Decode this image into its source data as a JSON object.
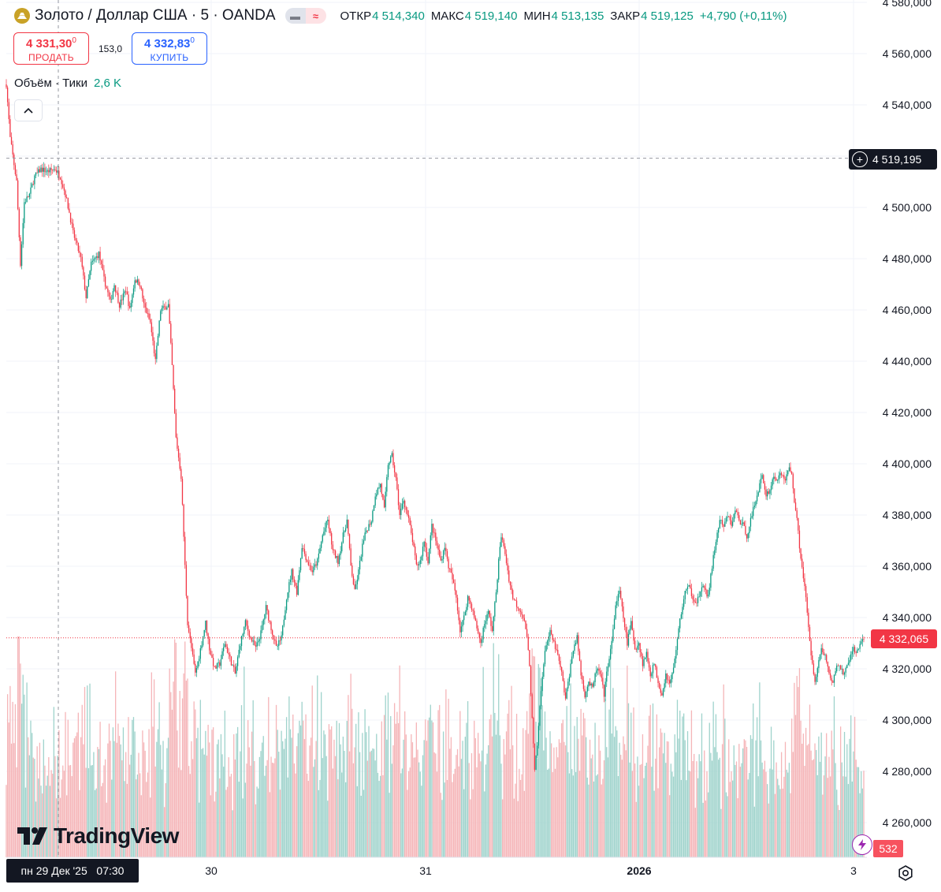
{
  "header": {
    "symbol_title": "Золото / Доллар США · 5 · OANDA",
    "open_label": "ОТКР",
    "open_value": "4 514,340",
    "high_label": "МАКС",
    "high_value": "4 519,140",
    "low_label": "МИН",
    "low_value": "4 513,135",
    "close_label": "ЗАКР",
    "close_value": "4 519,125",
    "change": "+4,790 (+0,11%)"
  },
  "trade": {
    "sell_price": "4 331,30",
    "sell_sup": "0",
    "sell_label": "ПРОДАТЬ",
    "spread": "153,0",
    "buy_price": "4 332,83",
    "buy_sup": "0",
    "buy_label": "КУПИТЬ"
  },
  "volume_indicator": {
    "label": "Объём · Тики",
    "value": "2,6 K"
  },
  "price_scale": {
    "labels": [
      "4 580,000",
      "4 560,000",
      "4 540,000",
      "4 520,000",
      "4 500,000",
      "4 480,000",
      "4 460,000",
      "4 440,000",
      "4 420,000",
      "4 400,000",
      "4 380,000",
      "4 360,000",
      "4 340,000",
      "4 320,000",
      "4 300,000",
      "4 280,000",
      "4 260,000"
    ],
    "crosshair_price": "4 519,195",
    "last_price": "4 332,065",
    "volume_last": "532"
  },
  "time_scale": {
    "labels": [
      "30",
      "31",
      "2026",
      "3"
    ],
    "crosshair_time": "пн 29 Дек '25   07:30"
  },
  "branding": {
    "logo_text": "TradingView"
  },
  "colors": {
    "up": "#089981",
    "down": "#f23645",
    "vol_up": "#9fd3cc",
    "vol_down": "#f5b5b8",
    "grid": "#f0f3fa"
  },
  "chart_data": {
    "type": "candlestick",
    "timeframe": "5",
    "y_range": [
      4250,
      4582
    ],
    "price_path": [
      [
        0,
        4548
      ],
      [
        3,
        4527
      ],
      [
        8,
        4510
      ],
      [
        11,
        4478
      ],
      [
        14,
        4502
      ],
      [
        18,
        4505
      ],
      [
        22,
        4512
      ],
      [
        27,
        4515
      ],
      [
        32,
        4514
      ],
      [
        38,
        4515
      ],
      [
        42,
        4512
      ],
      [
        46,
        4505
      ],
      [
        49,
        4498
      ],
      [
        52,
        4490
      ],
      [
        58,
        4480
      ],
      [
        62,
        4465
      ],
      [
        66,
        4478
      ],
      [
        72,
        4482
      ],
      [
        76,
        4472
      ],
      [
        81,
        4463
      ],
      [
        84,
        4470
      ],
      [
        88,
        4462
      ],
      [
        93,
        4468
      ],
      [
        96,
        4460
      ],
      [
        100,
        4472
      ],
      [
        104,
        4470
      ],
      [
        107,
        4462
      ],
      [
        112,
        4455
      ],
      [
        116,
        4440
      ],
      [
        120,
        4460
      ],
      [
        126,
        4462
      ],
      [
        129,
        4438
      ],
      [
        132,
        4410
      ],
      [
        136,
        4395
      ],
      [
        139,
        4360
      ],
      [
        141,
        4338
      ],
      [
        144,
        4328
      ],
      [
        147,
        4318
      ],
      [
        150,
        4325
      ],
      [
        155,
        4338
      ],
      [
        158,
        4328
      ],
      [
        162,
        4320
      ],
      [
        166,
        4322
      ],
      [
        170,
        4330
      ],
      [
        174,
        4324
      ],
      [
        178,
        4318
      ],
      [
        182,
        4330
      ],
      [
        186,
        4338
      ],
      [
        190,
        4332
      ],
      [
        194,
        4328
      ],
      [
        198,
        4334
      ],
      [
        202,
        4344
      ],
      [
        206,
        4336
      ],
      [
        210,
        4328
      ],
      [
        214,
        4332
      ],
      [
        218,
        4348
      ],
      [
        222,
        4358
      ],
      [
        226,
        4350
      ],
      [
        230,
        4368
      ],
      [
        234,
        4362
      ],
      [
        238,
        4358
      ],
      [
        242,
        4362
      ],
      [
        246,
        4372
      ],
      [
        250,
        4378
      ],
      [
        254,
        4366
      ],
      [
        258,
        4362
      ],
      [
        262,
        4372
      ],
      [
        265,
        4378
      ],
      [
        268,
        4360
      ],
      [
        271,
        4350
      ],
      [
        274,
        4358
      ],
      [
        277,
        4368
      ],
      [
        280,
        4374
      ],
      [
        284,
        4378
      ],
      [
        287,
        4388
      ],
      [
        291,
        4392
      ],
      [
        294,
        4382
      ],
      [
        297,
        4400
      ],
      [
        300,
        4403
      ],
      [
        303,
        4394
      ],
      [
        306,
        4380
      ],
      [
        309,
        4386
      ],
      [
        313,
        4378
      ],
      [
        316,
        4370
      ],
      [
        319,
        4360
      ],
      [
        322,
        4362
      ],
      [
        325,
        4370
      ],
      [
        328,
        4362
      ],
      [
        331,
        4376
      ],
      [
        334,
        4370
      ],
      [
        338,
        4362
      ],
      [
        341,
        4368
      ],
      [
        344,
        4360
      ],
      [
        347,
        4355
      ],
      [
        350,
        4348
      ],
      [
        353,
        4335
      ],
      [
        356,
        4340
      ],
      [
        359,
        4348
      ],
      [
        362,
        4344
      ],
      [
        366,
        4336
      ],
      [
        369,
        4330
      ],
      [
        372,
        4338
      ],
      [
        375,
        4342
      ],
      [
        378,
        4335
      ],
      [
        381,
        4350
      ],
      [
        383,
        4362
      ],
      [
        385,
        4372
      ],
      [
        388,
        4365
      ],
      [
        391,
        4355
      ],
      [
        394,
        4348
      ],
      [
        397,
        4345
      ],
      [
        401,
        4342
      ],
      [
        404,
        4336
      ],
      [
        407,
        4322
      ],
      [
        409,
        4300
      ],
      [
        411,
        4280
      ],
      [
        413,
        4290
      ],
      [
        415,
        4305
      ],
      [
        417,
        4318
      ],
      [
        420,
        4330
      ],
      [
        423,
        4334
      ],
      [
        426,
        4330
      ],
      [
        429,
        4325
      ],
      [
        432,
        4318
      ],
      [
        435,
        4308
      ],
      [
        438,
        4318
      ],
      [
        441,
        4328
      ],
      [
        444,
        4332
      ],
      [
        447,
        4318
      ],
      [
        450,
        4310
      ],
      [
        453,
        4315
      ],
      [
        456,
        4312
      ],
      [
        459,
        4320
      ],
      [
        462,
        4318
      ],
      [
        465,
        4310
      ],
      [
        468,
        4322
      ],
      [
        471,
        4330
      ],
      [
        474,
        4345
      ],
      [
        477,
        4350
      ],
      [
        480,
        4340
      ],
      [
        483,
        4330
      ],
      [
        486,
        4338
      ],
      [
        489,
        4328
      ],
      [
        492,
        4330
      ],
      [
        495,
        4322
      ],
      [
        498,
        4326
      ],
      [
        501,
        4318
      ],
      [
        504,
        4322
      ],
      [
        507,
        4315
      ],
      [
        510,
        4310
      ],
      [
        513,
        4318
      ],
      [
        516,
        4314
      ],
      [
        519,
        4320
      ],
      [
        522,
        4332
      ],
      [
        525,
        4342
      ],
      [
        528,
        4350
      ],
      [
        531,
        4352
      ],
      [
        534,
        4348
      ],
      [
        537,
        4346
      ],
      [
        540,
        4350
      ],
      [
        543,
        4352
      ],
      [
        546,
        4348
      ],
      [
        549,
        4360
      ],
      [
        552,
        4370
      ],
      [
        555,
        4378
      ],
      [
        558,
        4375
      ],
      [
        561,
        4380
      ],
      [
        564,
        4376
      ],
      [
        567,
        4382
      ],
      [
        570,
        4378
      ],
      [
        573,
        4376
      ],
      [
        576,
        4372
      ],
      [
        579,
        4378
      ],
      [
        582,
        4384
      ],
      [
        585,
        4390
      ],
      [
        588,
        4395
      ],
      [
        591,
        4388
      ],
      [
        594,
        4390
      ],
      [
        597,
        4395
      ],
      [
        600,
        4394
      ],
      [
        603,
        4396
      ],
      [
        606,
        4394
      ],
      [
        609,
        4398
      ],
      [
        611,
        4396
      ],
      [
        613,
        4386
      ],
      [
        615,
        4378
      ],
      [
        617,
        4368
      ],
      [
        619,
        4360
      ],
      [
        621,
        4352
      ],
      [
        623,
        4342
      ],
      [
        625,
        4330
      ],
      [
        627,
        4322
      ],
      [
        629,
        4316
      ],
      [
        631,
        4320
      ],
      [
        634,
        4328
      ],
      [
        637,
        4325
      ],
      [
        640,
        4318
      ],
      [
        643,
        4314
      ],
      [
        646,
        4322
      ],
      [
        649,
        4320
      ],
      [
        652,
        4318
      ],
      [
        655,
        4322
      ],
      [
        658,
        4328
      ],
      [
        661,
        4326
      ],
      [
        664,
        4330
      ],
      [
        667,
        4332
      ]
    ]
  }
}
